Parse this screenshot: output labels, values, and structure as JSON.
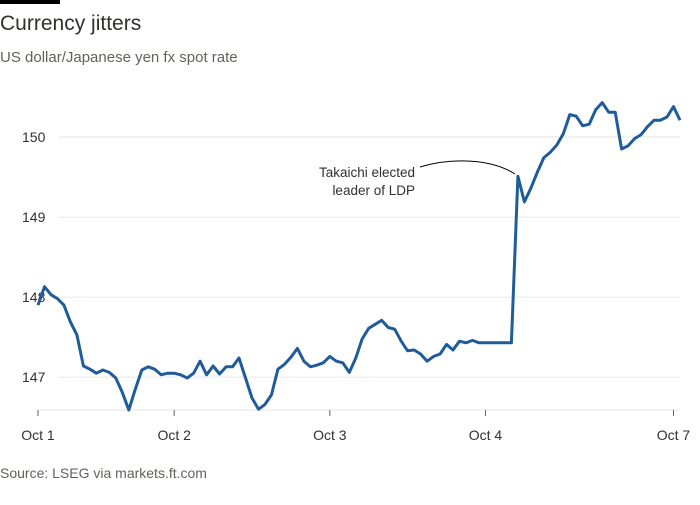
{
  "chart_data": {
    "type": "line",
    "title": "Currency jitters",
    "subtitle": "US dollar/Japanese yen fx spot rate",
    "source": "Source: LSEG via markets.ft.com",
    "annotation": [
      "Takaichi elected",
      "leader of LDP"
    ],
    "x": [
      0,
      1,
      2,
      3,
      4,
      5,
      6,
      7,
      8,
      9,
      10,
      11,
      12,
      13,
      14,
      15,
      16,
      17,
      18,
      19,
      20,
      21,
      22,
      23,
      24,
      25,
      26,
      27,
      28,
      29,
      30,
      31,
      32,
      33,
      34,
      35,
      36,
      37,
      38,
      39,
      40,
      41,
      42,
      43,
      44,
      45,
      46,
      47,
      48,
      49,
      50,
      51,
      52,
      53,
      54,
      55,
      56,
      57,
      58,
      59,
      60,
      61,
      62,
      63,
      64,
      65,
      66,
      67,
      68,
      69,
      70,
      71,
      72,
      73,
      74,
      75,
      76,
      77,
      78,
      79,
      80,
      81,
      82,
      83,
      84,
      85,
      86,
      87,
      88,
      89,
      90,
      91,
      92,
      93,
      94,
      95,
      96,
      97,
      98,
      99
    ],
    "series": [
      {
        "name": "USD/JPY",
        "color": "#1f5c99",
        "values": [
          147.9,
          148.13,
          148.03,
          147.98,
          147.9,
          147.69,
          147.53,
          147.14,
          147.1,
          147.05,
          147.09,
          147.06,
          146.99,
          146.81,
          146.59,
          146.85,
          147.09,
          147.13,
          147.1,
          147.03,
          147.05,
          147.05,
          147.03,
          146.99,
          147.05,
          147.2,
          147.03,
          147.14,
          147.04,
          147.13,
          147.13,
          147.24,
          146.99,
          146.74,
          146.6,
          146.66,
          146.78,
          147.1,
          147.16,
          147.25,
          147.36,
          147.2,
          147.13,
          147.15,
          147.18,
          147.26,
          147.2,
          147.18,
          147.06,
          147.24,
          147.48,
          147.61,
          147.66,
          147.71,
          147.62,
          147.6,
          147.45,
          147.33,
          147.34,
          147.29,
          147.2,
          147.26,
          147.29,
          147.41,
          147.34,
          147.45,
          147.43,
          147.46,
          147.43,
          147.43,
          147.43,
          147.43,
          147.43,
          147.43,
          149.51,
          149.19,
          149.36,
          149.56,
          149.74,
          149.81,
          149.9,
          150.04,
          150.28,
          150.26,
          150.14,
          150.16,
          150.34,
          150.43,
          150.31,
          150.31,
          149.85,
          149.89,
          149.98,
          150.03,
          150.13,
          150.21,
          150.21,
          150.25,
          150.38,
          150.21
        ]
      }
    ],
    "xlim": [
      0,
      99
    ],
    "xticks": [
      {
        "value": 0,
        "label": "Oct 1"
      },
      {
        "value": 21,
        "label": "Oct 2"
      },
      {
        "value": 45,
        "label": "Oct 3"
      },
      {
        "value": 69,
        "label": "Oct 4"
      },
      {
        "value": 98,
        "label": "Oct 7"
      }
    ],
    "ylim": [
      146.59,
      150.65
    ],
    "yticks": [
      147,
      148,
      149,
      150
    ],
    "grid": true
  }
}
